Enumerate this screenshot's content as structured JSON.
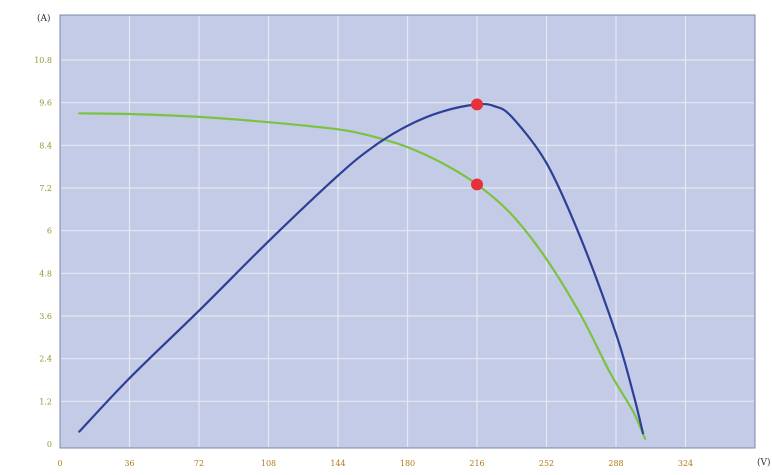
{
  "chart_data": {
    "type": "line",
    "title": "",
    "xlabel": "(V)",
    "ylabel": "(A)",
    "xlim": [
      0,
      360
    ],
    "ylim": [
      0,
      10.8
    ],
    "grid": true,
    "x_ticks": [
      "0",
      "36",
      "72",
      "108",
      "144",
      "180",
      "216",
      "252",
      "288",
      "324"
    ],
    "y_ticks": [
      "0",
      "1.2",
      "2.4",
      "3.6",
      "4.8",
      "6",
      "7.2",
      "8.4",
      "9.6",
      "10.8"
    ],
    "series": [
      {
        "color": "#7cc242",
        "x": [
          10,
          36,
          72,
          108,
          144,
          162,
          180,
          198,
          216,
          234,
          252,
          270,
          285,
          297,
          303
        ],
        "y": [
          9.3,
          9.28,
          9.2,
          9.05,
          8.85,
          8.65,
          8.35,
          7.9,
          7.3,
          6.45,
          5.2,
          3.6,
          2.0,
          0.9,
          0.15
        ]
      },
      {
        "color": "#2e3f96",
        "x": [
          10,
          36,
          72,
          108,
          144,
          162,
          180,
          198,
          216,
          225,
          234,
          252,
          270,
          288,
          297,
          302
        ],
        "y": [
          0.35,
          1.85,
          3.75,
          5.7,
          7.55,
          8.35,
          8.95,
          9.35,
          9.55,
          9.5,
          9.2,
          7.9,
          5.75,
          3.1,
          1.4,
          0.3
        ]
      }
    ],
    "markers": [
      {
        "x": 216,
        "y": 9.55,
        "color": "#e8303a"
      },
      {
        "x": 216,
        "y": 7.3,
        "color": "#e8303a"
      }
    ],
    "colors": {
      "plot_bg": "#c3cbe6",
      "grid": "#e4e8f4",
      "tick_y": "#8c9b2e",
      "tick_x": "#b07a1e"
    }
  }
}
